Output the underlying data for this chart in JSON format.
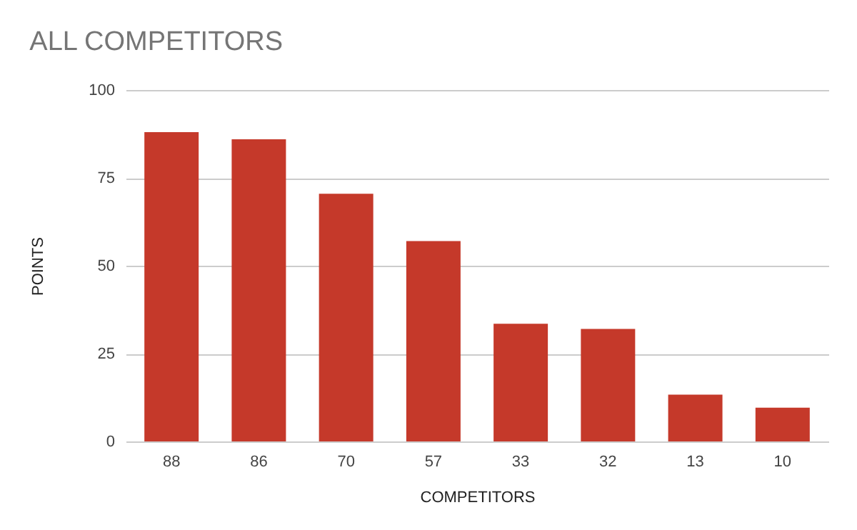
{
  "chart_data": {
    "type": "bar",
    "title": "ALL COMPETITORS",
    "xlabel": "COMPETITORS",
    "ylabel": "POINTS",
    "categories": [
      "88",
      "86",
      "70",
      "57",
      "33",
      "32",
      "13",
      "10"
    ],
    "values": [
      88,
      86,
      70.5,
      57,
      33.5,
      32,
      13.3,
      9.6
    ],
    "color": "#c5392a",
    "ylim": [
      0,
      100
    ],
    "yticks": [
      0,
      25,
      50,
      75,
      100
    ],
    "grid": "y"
  }
}
